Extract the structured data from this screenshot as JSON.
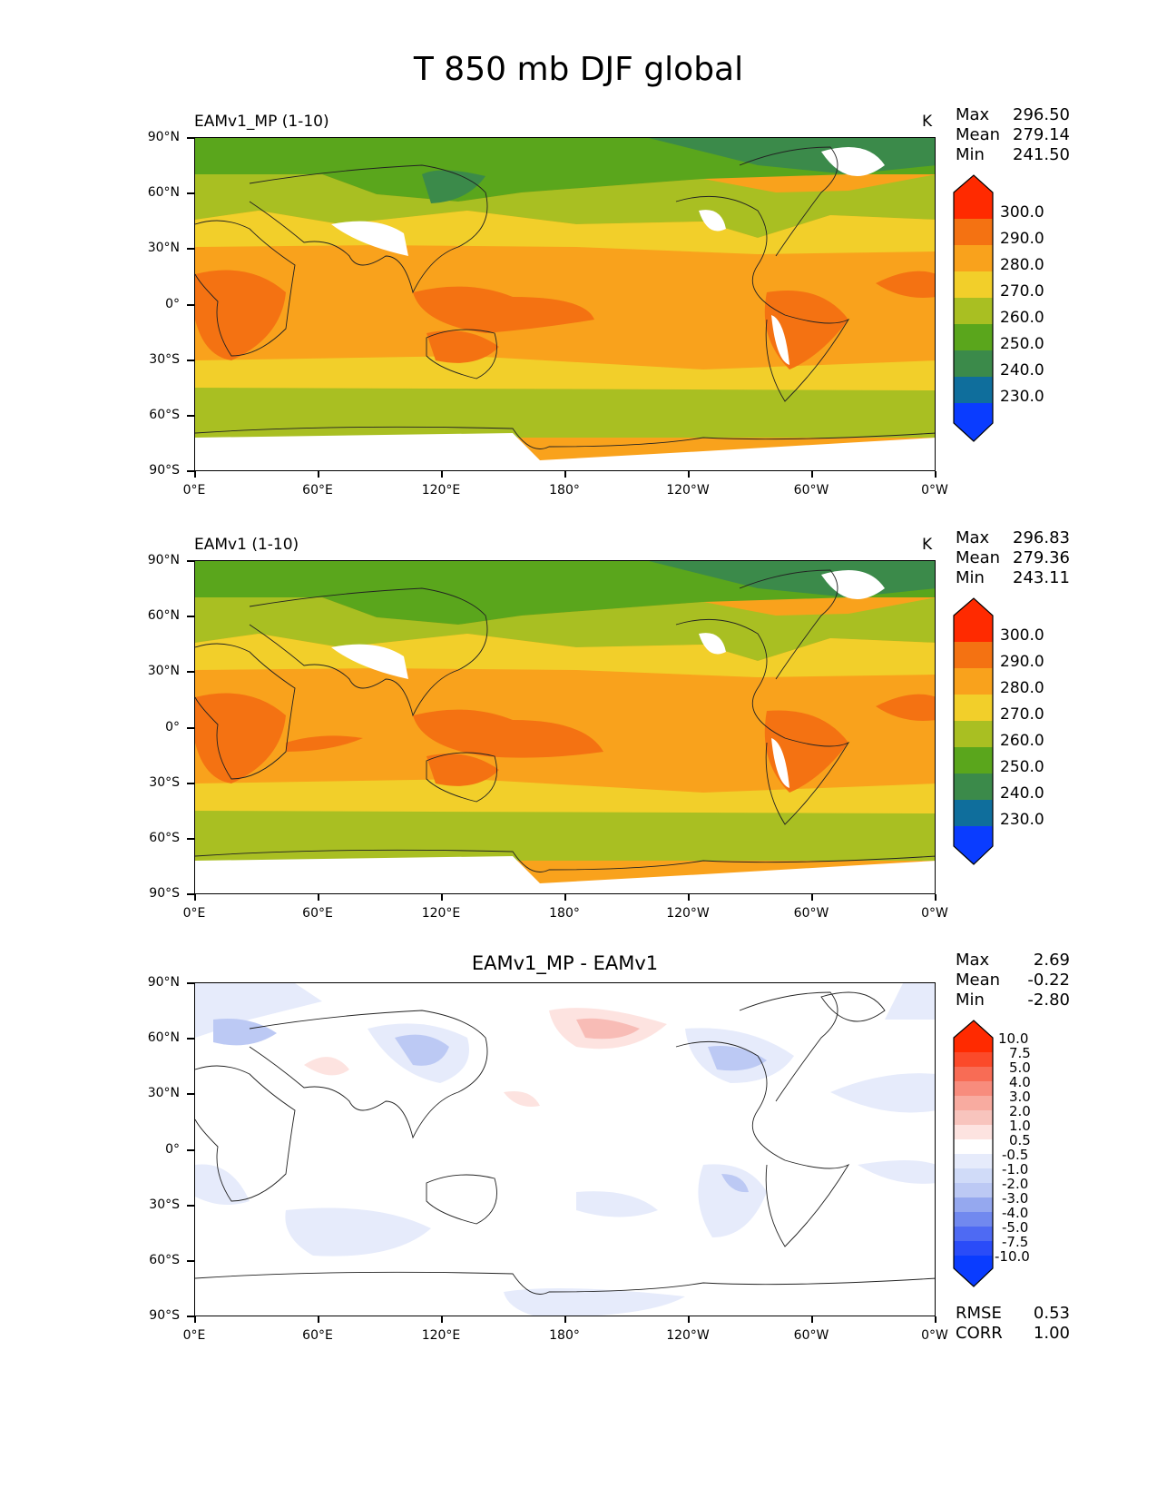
{
  "title": "T 850 mb DJF global",
  "axes": {
    "y_labels": [
      "90°N",
      "60°N",
      "30°N",
      "0°",
      "30°S",
      "60°S",
      "90°S"
    ],
    "x_labels": [
      "0°E",
      "60°E",
      "120°E",
      "180°",
      "120°W",
      "60°W",
      "0°W"
    ]
  },
  "panels": [
    {
      "left_title": "EAMv1_MP (1-10)",
      "units": "K",
      "stats": {
        "max_label": "Max",
        "max": "296.50",
        "mean_label": "Mean",
        "mean": "279.14",
        "min_label": "Min",
        "min": "241.50"
      },
      "colorbar_ticks": [
        "300.0",
        "290.0",
        "280.0",
        "270.0",
        "260.0",
        "250.0",
        "240.0",
        "230.0"
      ]
    },
    {
      "left_title": "EAMv1 (1-10)",
      "units": "K",
      "stats": {
        "max_label": "Max",
        "max": "296.83",
        "mean_label": "Mean",
        "mean": "279.36",
        "min_label": "Min",
        "min": "243.11"
      },
      "colorbar_ticks": [
        "300.0",
        "290.0",
        "280.0",
        "270.0",
        "260.0",
        "250.0",
        "240.0",
        "230.0"
      ]
    },
    {
      "center_title": "EAMv1_MP - EAMv1",
      "stats": {
        "max_label": "Max",
        "max": "2.69",
        "mean_label": "Mean",
        "mean": "-0.22",
        "min_label": "Min",
        "min": "-2.80"
      },
      "colorbar_ticks": [
        "10.0",
        "7.5",
        "5.0",
        "4.0",
        "3.0",
        "2.0",
        "1.0",
        "0.5",
        "-0.5",
        "-1.0",
        "-2.0",
        "-3.0",
        "-4.0",
        "-5.0",
        "-7.5",
        "-10.0"
      ],
      "metrics": {
        "rmse_label": "RMSE",
        "rmse": "0.53",
        "corr_label": "CORR",
        "corr": "1.00"
      }
    }
  ],
  "colors": {
    "c230": "#0a3cff",
    "c235": "#0f6e9c",
    "c240": "#3b8a4a",
    "c250": "#5aa61c",
    "c260": "#a9bf22",
    "c270": "#f2cf2a",
    "c280": "#f9a21c",
    "c290": "#f47212",
    "c300": "#ff2a00",
    "diff_neg_light": "#e6ebfb",
    "diff_neg_mid": "#bcc9f4",
    "diff_neg_dark": "#95a8ef",
    "diff_pos_light": "#fde3e0",
    "diff_pos_mid": "#f8bcb6"
  }
}
